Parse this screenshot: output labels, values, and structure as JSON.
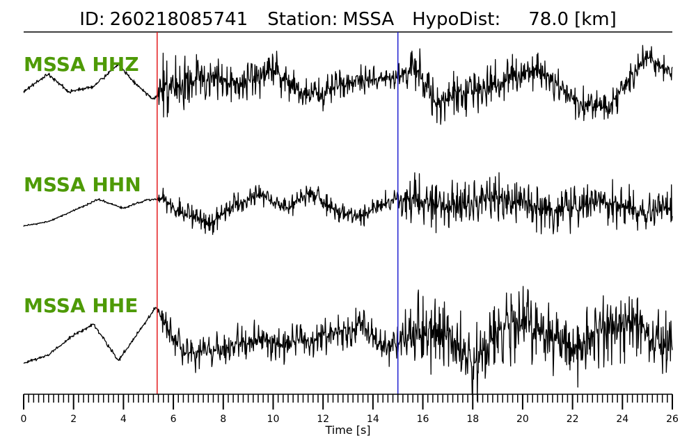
{
  "title": {
    "id_label": "ID:",
    "id_value": "260218085741",
    "station_label": "Station:",
    "station_value": "MSSA",
    "hypodist_label": "HypoDist:",
    "hypodist_value": "78.0",
    "hypodist_unit": "[km]"
  },
  "colors": {
    "label": "#4e9a06",
    "trace": "#000000",
    "p_pick": "#e31a1c",
    "s_pick": "#1f1fd0",
    "axis": "#000000"
  },
  "chart_data": {
    "type": "line",
    "xlabel": "Time [s]",
    "xlim": [
      0,
      26
    ],
    "major_ticks": [
      0,
      2,
      4,
      6,
      8,
      10,
      12,
      14,
      16,
      18,
      20,
      22,
      24,
      26
    ],
    "major_tick_labels": [
      "0",
      "2",
      "4",
      "6",
      "8",
      "10",
      "12",
      "14",
      "16",
      "18",
      "20",
      "22",
      "24",
      "26"
    ],
    "minor_tick_step": 0.2,
    "picks": [
      {
        "phase": "P",
        "time": 5.35,
        "color": "#e31a1c"
      },
      {
        "phase": "S",
        "time": 15.0,
        "color": "#1f1fd0"
      }
    ],
    "series": [
      {
        "name": "MSSA HHZ",
        "envelope": [
          [
            0,
            0.05
          ],
          [
            5.35,
            0.05
          ],
          [
            5.6,
            0.85
          ],
          [
            9,
            0.55
          ],
          [
            15,
            0.3
          ],
          [
            16,
            0.65
          ],
          [
            26,
            0.35
          ]
        ],
        "trend": [
          [
            0,
            0.0
          ],
          [
            0.4,
            0.15
          ],
          [
            1.0,
            0.35
          ],
          [
            1.8,
            0.0
          ],
          [
            2.8,
            0.1
          ],
          [
            3.8,
            0.55
          ],
          [
            4.5,
            0.15
          ],
          [
            5.2,
            -0.15
          ],
          [
            5.6,
            0.1
          ],
          [
            7,
            0.25
          ],
          [
            9,
            0.2
          ],
          [
            10,
            0.45
          ],
          [
            11,
            0.0
          ],
          [
            12,
            -0.05
          ],
          [
            13,
            0.2
          ],
          [
            14,
            0.25
          ],
          [
            15,
            0.3
          ],
          [
            15.7,
            0.5
          ],
          [
            16.5,
            -0.2
          ],
          [
            17.5,
            0.0
          ],
          [
            18.5,
            0.05
          ],
          [
            19.5,
            0.3
          ],
          [
            20.3,
            0.45
          ],
          [
            21,
            0.35
          ],
          [
            21.5,
            0.1
          ],
          [
            22.3,
            -0.25
          ],
          [
            23.5,
            -0.3
          ],
          [
            24.3,
            0.3
          ],
          [
            25,
            0.7
          ],
          [
            26,
            0.35
          ]
        ]
      },
      {
        "name": "MSSA HHN",
        "envelope": [
          [
            0,
            0.02
          ],
          [
            5.35,
            0.04
          ],
          [
            5.6,
            0.35
          ],
          [
            9,
            0.35
          ],
          [
            15,
            0.3
          ],
          [
            15.3,
            0.8
          ],
          [
            26,
            0.6
          ]
        ],
        "trend": [
          [
            0,
            -0.55
          ],
          [
            1.0,
            -0.45
          ],
          [
            2.0,
            -0.2
          ],
          [
            3.0,
            0.05
          ],
          [
            4.0,
            -0.15
          ],
          [
            5.0,
            0.05
          ],
          [
            5.6,
            0.05
          ],
          [
            6.5,
            -0.3
          ],
          [
            7.5,
            -0.5
          ],
          [
            8.5,
            -0.05
          ],
          [
            9.5,
            0.15
          ],
          [
            10.5,
            -0.15
          ],
          [
            11.5,
            0.2
          ],
          [
            12.5,
            -0.2
          ],
          [
            13.5,
            -0.35
          ],
          [
            14.5,
            0.0
          ],
          [
            15,
            0.05
          ],
          [
            16,
            0.0
          ],
          [
            17,
            -0.1
          ],
          [
            18,
            0.0
          ],
          [
            19,
            0.1
          ],
          [
            20,
            0.0
          ],
          [
            21,
            -0.2
          ],
          [
            22,
            -0.15
          ],
          [
            23,
            0.0
          ],
          [
            24,
            -0.1
          ],
          [
            25,
            -0.25
          ],
          [
            26,
            -0.1
          ]
        ]
      },
      {
        "name": "MSSA HHE",
        "envelope": [
          [
            0,
            0.04
          ],
          [
            5.35,
            0.05
          ],
          [
            5.6,
            0.35
          ],
          [
            9,
            0.45
          ],
          [
            15,
            0.45
          ],
          [
            15.5,
            0.9
          ],
          [
            26,
            0.9
          ]
        ],
        "trend": [
          [
            0,
            -0.55
          ],
          [
            1.0,
            -0.4
          ],
          [
            2.0,
            -0.05
          ],
          [
            2.8,
            0.15
          ],
          [
            3.8,
            -0.5
          ],
          [
            4.6,
            0.0
          ],
          [
            5.3,
            0.45
          ],
          [
            5.8,
            0.0
          ],
          [
            6.5,
            -0.4
          ],
          [
            7.5,
            -0.35
          ],
          [
            8.5,
            -0.2
          ],
          [
            9.5,
            -0.15
          ],
          [
            10.5,
            -0.2
          ],
          [
            11.5,
            -0.15
          ],
          [
            12.5,
            0.0
          ],
          [
            13.5,
            0.15
          ],
          [
            14.5,
            -0.35
          ],
          [
            15,
            -0.15
          ],
          [
            16,
            0.0
          ],
          [
            17,
            0.0
          ],
          [
            18,
            -0.6
          ],
          [
            19,
            0.0
          ],
          [
            20,
            0.2
          ],
          [
            21,
            0.0
          ],
          [
            22,
            -0.3
          ],
          [
            23,
            0.0
          ],
          [
            24,
            0.2
          ],
          [
            25,
            0.0
          ],
          [
            26,
            -0.3
          ]
        ]
      }
    ]
  }
}
